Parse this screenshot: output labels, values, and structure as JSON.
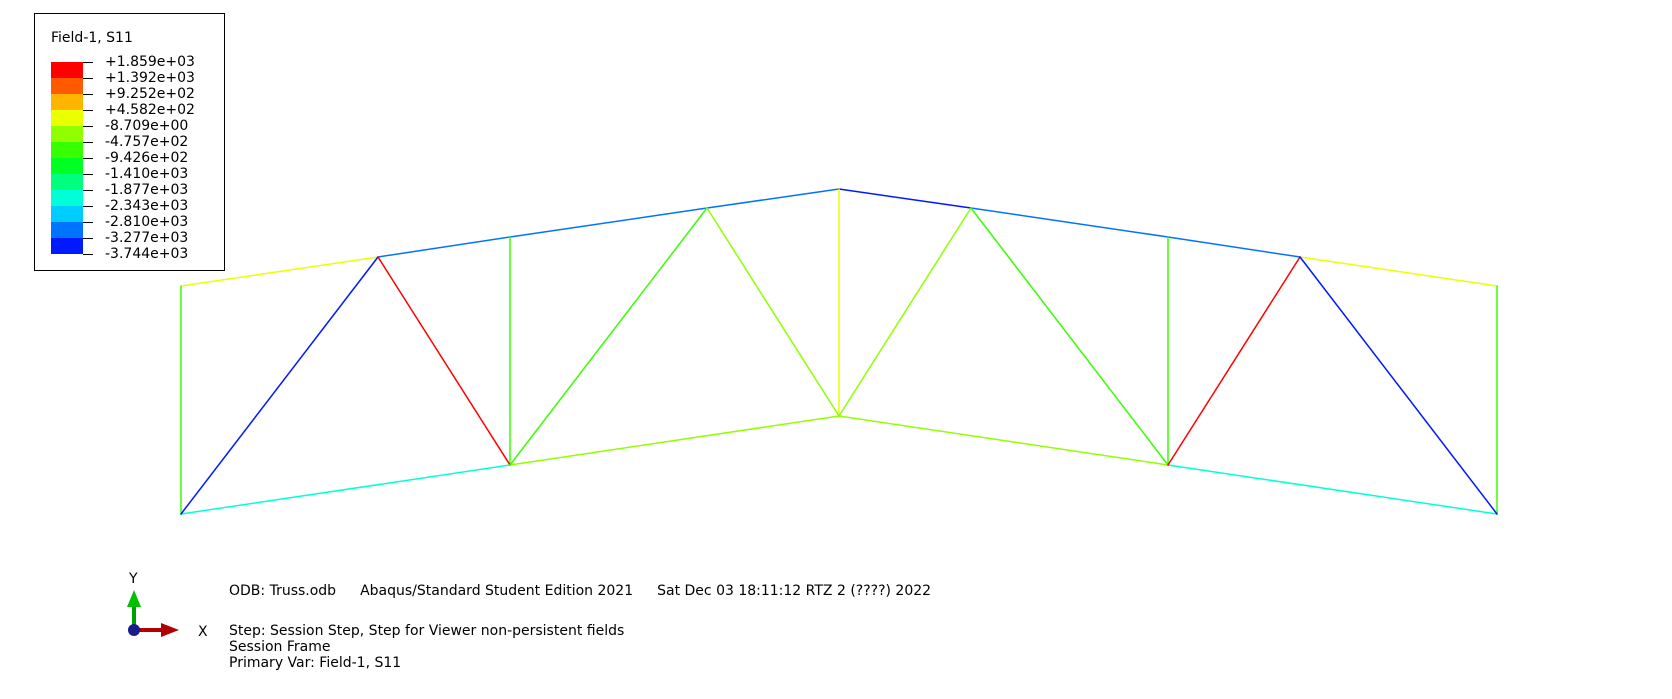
{
  "legend": {
    "title": "Field-1, S11",
    "labels": [
      "+1.859e+03",
      "+1.392e+03",
      "+9.252e+02",
      "+4.582e+02",
      "-8.709e+00",
      "-4.757e+02",
      "-9.426e+02",
      "-1.410e+03",
      "-1.877e+03",
      "-2.343e+03",
      "-2.810e+03",
      "-3.277e+03",
      "-3.744e+03"
    ],
    "colors": [
      "#ff0000",
      "#ff5a00",
      "#ffb400",
      "#eaff00",
      "#91ff00",
      "#37ff00",
      "#00ff23",
      "#00ff7d",
      "#00ffd7",
      "#00cdff",
      "#0073ff",
      "#0019ff"
    ]
  },
  "triad": {
    "y_label": "Y",
    "x_label": "X"
  },
  "info": {
    "odb": "ODB: Truss.odb",
    "product": "Abaqus/Standard Student Edition 2021",
    "date": "Sat Dec 03 18:11:12 RTZ 2 (????) 2022",
    "step": "Step: Session Step, Step for Viewer non-persistent fields",
    "frame": "Session Frame",
    "primary_var": "Primary Var: Field-1, S11"
  }
}
